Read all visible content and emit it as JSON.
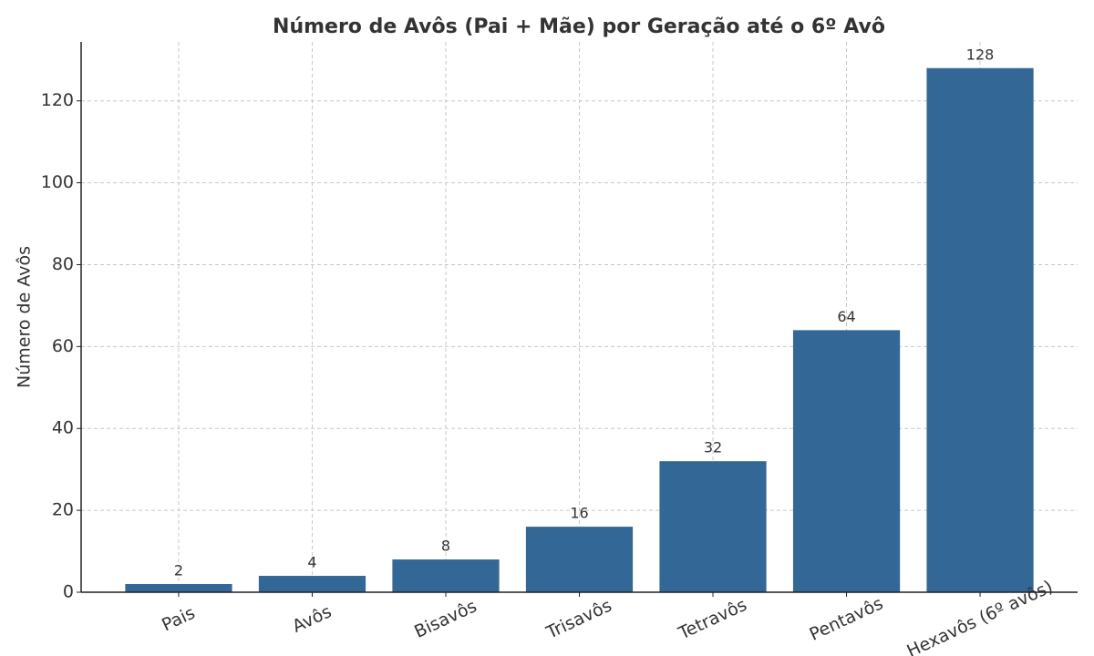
{
  "chart_data": {
    "type": "bar",
    "title": "Número de Avôs (Pai + Mãe) por Geração até o 6º Avô",
    "ylabel": "Número de Avôs",
    "categories": [
      "Pais",
      "Avôs",
      "Bisavôs",
      "Trisavôs",
      "Tetravôs",
      "Pentavôs",
      "Hexavôs (6º avôs)"
    ],
    "values": [
      2,
      4,
      8,
      16,
      32,
      64,
      128
    ],
    "color": "#336896",
    "ylim": [
      0,
      134.4
    ],
    "yticks": [
      0,
      20,
      40,
      60,
      80,
      100,
      120
    ],
    "grid": true
  }
}
